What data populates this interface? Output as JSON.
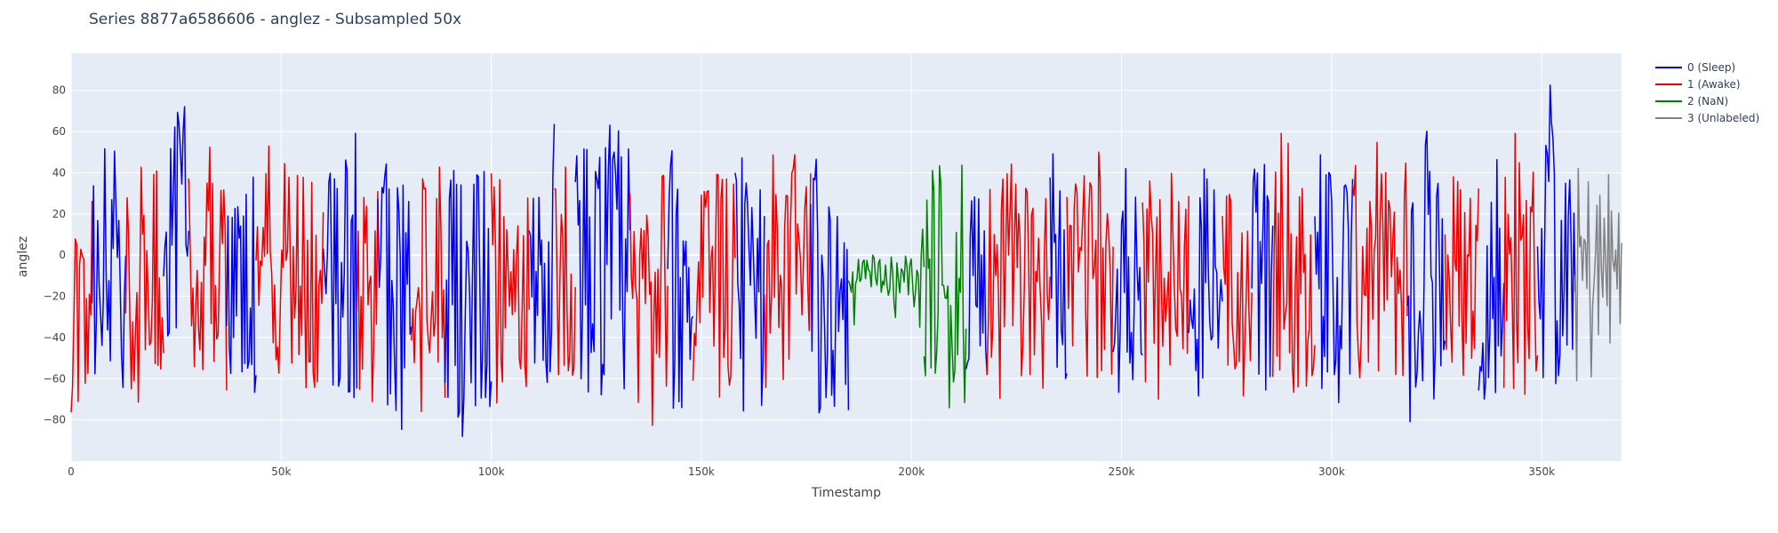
{
  "chart_data": {
    "type": "line",
    "title": "Series 8877a6586606 - anglez - Subsampled 50x",
    "xlabel": "Timestamp",
    "ylabel": "anglez",
    "xlim": [
      0,
      369000
    ],
    "ylim": [
      -100,
      98
    ],
    "x_ticks": [
      0,
      50000,
      100000,
      150000,
      200000,
      250000,
      300000,
      350000
    ],
    "x_tick_labels": [
      "0",
      "50k",
      "100k",
      "150k",
      "200k",
      "250k",
      "300k",
      "350k"
    ],
    "y_ticks": [
      -80,
      -60,
      -40,
      -20,
      0,
      20,
      40,
      60,
      80
    ],
    "y_tick_labels": [
      "−80",
      "−60",
      "−40",
      "−20",
      "0",
      "20",
      "40",
      "60",
      "80"
    ],
    "grid": true,
    "legend_position": "top-right",
    "series": [
      {
        "name": "0 (Sleep)",
        "color": "#0000ee"
      },
      {
        "name": "1 (Awake)",
        "color": "#ee0000"
      },
      {
        "name": "2 (NaN)",
        "color": "#008000"
      },
      {
        "name": "3 (Unlabeled)",
        "color": "#808080"
      }
    ],
    "segments": [
      {
        "series": 1,
        "x": [
          0,
          5000
        ],
        "amp": 55,
        "mean": -10
      },
      {
        "series": 0,
        "x": [
          5000,
          13000
        ],
        "amp": 55,
        "mean": -15
      },
      {
        "series": 1,
        "x": [
          13000,
          22000
        ],
        "amp": 55,
        "mean": -5
      },
      {
        "series": 0,
        "x": [
          22000,
          28000
        ],
        "amp": 65,
        "mean": 0
      },
      {
        "series": 1,
        "x": [
          28000,
          37000
        ],
        "amp": 60,
        "mean": -10
      },
      {
        "series": 0,
        "x": [
          37000,
          44000
        ],
        "amp": 60,
        "mean": -15
      },
      {
        "series": 1,
        "x": [
          44000,
          60000
        ],
        "amp": 55,
        "mean": -10
      },
      {
        "series": 0,
        "x": [
          60000,
          68000
        ],
        "amp": 65,
        "mean": -10
      },
      {
        "series": 1,
        "x": [
          68000,
          73000
        ],
        "amp": 50,
        "mean": -10
      },
      {
        "series": 0,
        "x": [
          73000,
          81000
        ],
        "amp": 70,
        "mean": -15
      },
      {
        "series": 1,
        "x": [
          81000,
          89000
        ],
        "amp": 60,
        "mean": -5
      },
      {
        "series": 0,
        "x": [
          89000,
          100000
        ],
        "amp": 65,
        "mean": -15
      },
      {
        "series": 1,
        "x": [
          100000,
          109000
        ],
        "amp": 50,
        "mean": -10
      },
      {
        "series": 0,
        "x": [
          109000,
          115000
        ],
        "amp": 65,
        "mean": -5
      },
      {
        "series": 1,
        "x": [
          115000,
          120000
        ],
        "amp": 50,
        "mean": -10
      },
      {
        "series": 0,
        "x": [
          120000,
          133000
        ],
        "amp": 70,
        "mean": -5
      },
      {
        "series": 1,
        "x": [
          133000,
          142000
        ],
        "amp": 55,
        "mean": -15
      },
      {
        "series": 0,
        "x": [
          142000,
          148000
        ],
        "amp": 65,
        "mean": -10
      },
      {
        "series": 1,
        "x": [
          148000,
          158000
        ],
        "amp": 55,
        "mean": -15
      },
      {
        "series": 0,
        "x": [
          158000,
          165000
        ],
        "amp": 65,
        "mean": -15
      },
      {
        "series": 1,
        "x": [
          165000,
          176000
        ],
        "amp": 60,
        "mean": -10
      },
      {
        "series": 0,
        "x": [
          176000,
          185000
        ],
        "amp": 60,
        "mean": -20
      },
      {
        "series": 2,
        "x": [
          185000,
          203000
        ],
        "amp": 10,
        "mean": -10
      },
      {
        "series": 2,
        "x": [
          203000,
          213000
        ],
        "amp": 55,
        "mean": -10
      },
      {
        "series": 0,
        "x": [
          213000,
          218000
        ],
        "amp": 55,
        "mean": -5
      },
      {
        "series": 1,
        "x": [
          218000,
          233000
        ],
        "amp": 50,
        "mean": -10
      },
      {
        "series": 0,
        "x": [
          233000,
          237000
        ],
        "amp": 60,
        "mean": -10
      },
      {
        "series": 1,
        "x": [
          237000,
          248000
        ],
        "amp": 50,
        "mean": -10
      },
      {
        "series": 0,
        "x": [
          248000,
          255000
        ],
        "amp": 60,
        "mean": -10
      },
      {
        "series": 1,
        "x": [
          255000,
          266000
        ],
        "amp": 55,
        "mean": -10
      },
      {
        "series": 0,
        "x": [
          266000,
          274000
        ],
        "amp": 60,
        "mean": -10
      },
      {
        "series": 1,
        "x": [
          274000,
          281000
        ],
        "amp": 50,
        "mean": -15
      },
      {
        "series": 0,
        "x": [
          281000,
          286000
        ],
        "amp": 65,
        "mean": -15
      },
      {
        "series": 1,
        "x": [
          286000,
          296000
        ],
        "amp": 55,
        "mean": -10
      },
      {
        "series": 0,
        "x": [
          296000,
          305000
        ],
        "amp": 65,
        "mean": -10
      },
      {
        "series": 1,
        "x": [
          305000,
          318000
        ],
        "amp": 55,
        "mean": -10
      },
      {
        "series": 0,
        "x": [
          318000,
          327000
        ],
        "amp": 65,
        "mean": -10
      },
      {
        "series": 1,
        "x": [
          327000,
          335000
        ],
        "amp": 55,
        "mean": -10
      },
      {
        "series": 0,
        "x": [
          335000,
          341000
        ],
        "amp": 65,
        "mean": -5
      },
      {
        "series": 1,
        "x": [
          341000,
          349000
        ],
        "amp": 60,
        "mean": -10
      },
      {
        "series": 0,
        "x": [
          349000,
          358000
        ],
        "amp": 70,
        "mean": 0
      },
      {
        "series": 3,
        "x": [
          358000,
          369000
        ],
        "amp": 55,
        "mean": -10
      }
    ]
  }
}
